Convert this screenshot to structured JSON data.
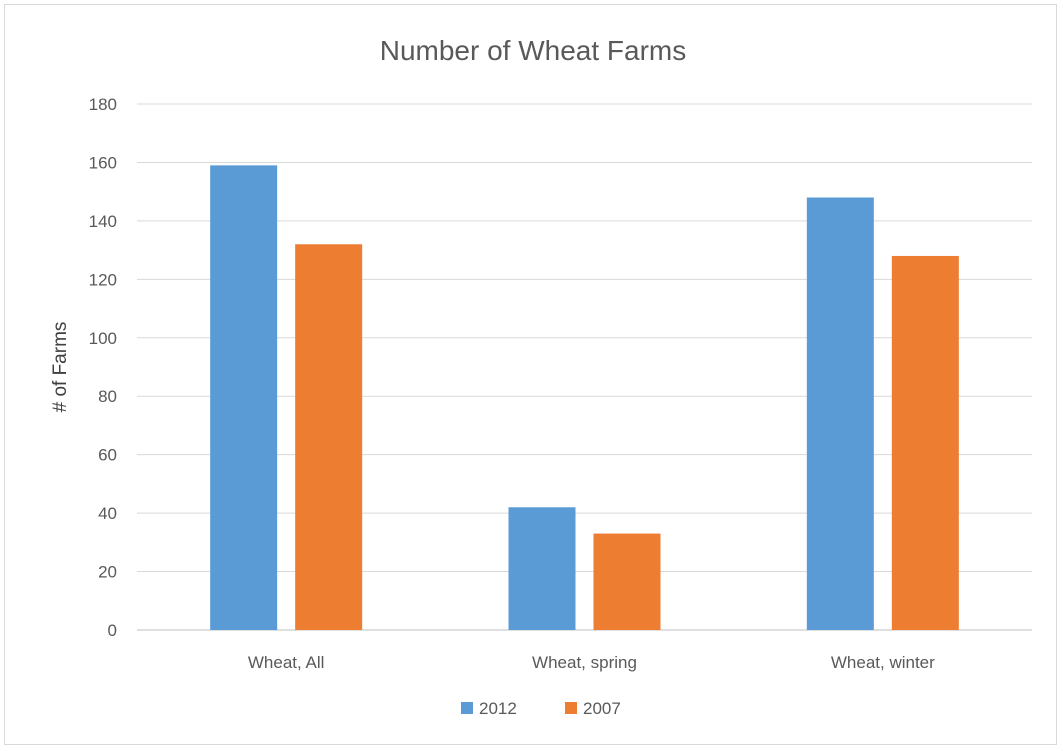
{
  "chart_data": {
    "type": "bar",
    "title": "Number of Wheat Farms",
    "xlabel": "",
    "ylabel": "# of Farms",
    "categories": [
      "Wheat, All",
      "Wheat, spring",
      "Wheat, winter"
    ],
    "series": [
      {
        "name": "2012",
        "color": "#5b9bd5",
        "values": [
          159,
          42,
          148
        ]
      },
      {
        "name": "2007",
        "color": "#ed7d31",
        "values": [
          132,
          33,
          128
        ]
      }
    ],
    "ylim": [
      0,
      180
    ],
    "yticks": [
      0,
      20,
      40,
      60,
      80,
      100,
      120,
      140,
      160,
      180
    ],
    "grid": true,
    "legend_position": "bottom"
  }
}
